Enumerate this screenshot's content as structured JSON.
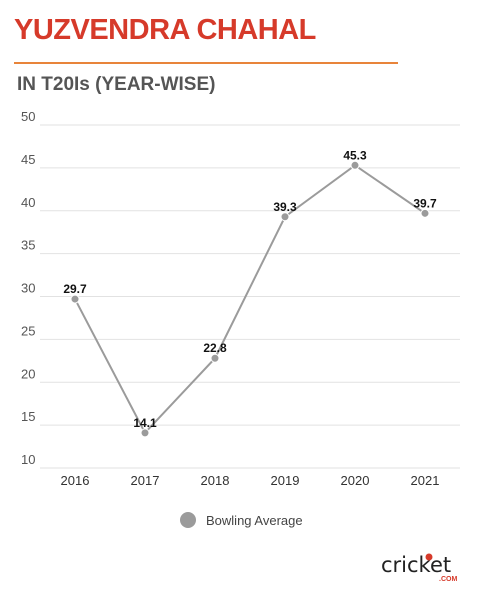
{
  "header": {
    "title": "YUZVENDRA CHAHAL",
    "subtitle": "IN T20Is (YEAR-WISE)"
  },
  "chart_data": {
    "type": "line",
    "title": "YUZVENDRA CHAHAL",
    "subtitle": "IN T20Is (YEAR-WISE)",
    "categories": [
      "2016",
      "2017",
      "2018",
      "2019",
      "2020",
      "2021"
    ],
    "series": [
      {
        "name": "Bowling Average",
        "values": [
          29.7,
          14.1,
          22.8,
          39.3,
          45.3,
          39.7
        ]
      }
    ],
    "data_labels": [
      "29.7",
      "14.1",
      "22.8",
      "39.3",
      "45.3",
      "39.7"
    ],
    "ylim": [
      10,
      50
    ],
    "yticks": [
      10,
      15,
      20,
      25,
      30,
      35,
      40,
      45,
      50
    ],
    "ytick_labels": [
      "10",
      "15",
      "20",
      "25",
      "30",
      "35",
      "40",
      "45",
      "50"
    ],
    "xlabel": "",
    "ylabel": "",
    "grid": true,
    "legend_position": "bottom-center",
    "colors": {
      "series": "#9b9b9b",
      "title": "#d63a2a",
      "rule": "#e8843a",
      "grid": "#e2e2e2"
    }
  },
  "legend": {
    "label": "Bowling Average"
  },
  "brand": {
    "name": "cricket.com",
    "logo_text": "cricket",
    "logo_suffix": ".COM"
  }
}
